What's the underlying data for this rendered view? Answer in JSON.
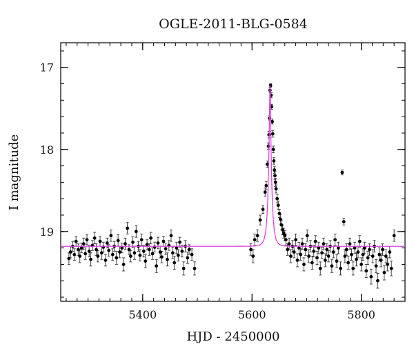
{
  "chart_data": {
    "type": "scatter",
    "title": "OGLE-2011-BLG-0584",
    "xlabel": "HJD - 2450000",
    "ylabel": "I magnitude",
    "xlim": [
      5250,
      5880
    ],
    "ylim": [
      19.85,
      16.7
    ],
    "y_inverted": true,
    "x_major_ticks": [
      5400,
      5600,
      5800
    ],
    "x_minor_step": 20,
    "y_major_ticks": [
      17,
      18,
      19
    ],
    "y_minor_step": 0.2,
    "grid": false,
    "colors": {
      "data": "#000000",
      "errorbar": "#333333",
      "model": "#e040e0"
    },
    "model": {
      "name": "model",
      "baseline": 19.18,
      "peak_mag": 17.22,
      "t0": 5633,
      "tE": 6.2
    },
    "series": [
      {
        "name": "data",
        "points": [
          [
            5265,
            19.33,
            0.07
          ],
          [
            5268,
            19.25,
            0.07
          ],
          [
            5272,
            19.18,
            0.06
          ],
          [
            5275,
            19.28,
            0.07
          ],
          [
            5278,
            19.12,
            0.06
          ],
          [
            5282,
            19.22,
            0.07
          ],
          [
            5285,
            19.3,
            0.08
          ],
          [
            5288,
            19.2,
            0.06
          ],
          [
            5292,
            19.15,
            0.07
          ],
          [
            5295,
            19.27,
            0.07
          ],
          [
            5298,
            19.1,
            0.06
          ],
          [
            5302,
            19.24,
            0.07
          ],
          [
            5305,
            19.34,
            0.08
          ],
          [
            5308,
            19.17,
            0.06
          ],
          [
            5312,
            19.08,
            0.07
          ],
          [
            5315,
            19.22,
            0.07
          ],
          [
            5318,
            19.3,
            0.07
          ],
          [
            5322,
            19.12,
            0.06
          ],
          [
            5325,
            19.26,
            0.08
          ],
          [
            5328,
            19.19,
            0.06
          ],
          [
            5332,
            19.35,
            0.07
          ],
          [
            5335,
            19.14,
            0.06
          ],
          [
            5338,
            19.23,
            0.07
          ],
          [
            5342,
            19.05,
            0.07
          ],
          [
            5345,
            19.28,
            0.07
          ],
          [
            5348,
            19.18,
            0.06
          ],
          [
            5352,
            19.32,
            0.08
          ],
          [
            5355,
            19.11,
            0.07
          ],
          [
            5358,
            19.25,
            0.07
          ],
          [
            5362,
            19.2,
            0.06
          ],
          [
            5365,
            19.4,
            0.08
          ],
          [
            5368,
            19.15,
            0.07
          ],
          [
            5372,
            18.96,
            0.07
          ],
          [
            5375,
            19.22,
            0.06
          ],
          [
            5378,
            19.3,
            0.07
          ],
          [
            5382,
            19.13,
            0.07
          ],
          [
            5385,
            19.26,
            0.08
          ],
          [
            5388,
            19.0,
            0.07
          ],
          [
            5392,
            19.18,
            0.06
          ],
          [
            5395,
            19.29,
            0.07
          ],
          [
            5398,
            19.1,
            0.07
          ],
          [
            5402,
            19.24,
            0.07
          ],
          [
            5405,
            19.36,
            0.08
          ],
          [
            5408,
            19.16,
            0.06
          ],
          [
            5412,
            19.22,
            0.07
          ],
          [
            5415,
            19.08,
            0.07
          ],
          [
            5418,
            19.27,
            0.07
          ],
          [
            5422,
            19.19,
            0.06
          ],
          [
            5425,
            19.42,
            0.08
          ],
          [
            5428,
            19.14,
            0.07
          ],
          [
            5432,
            19.25,
            0.07
          ],
          [
            5435,
            19.31,
            0.07
          ],
          [
            5438,
            19.12,
            0.06
          ],
          [
            5442,
            19.21,
            0.07
          ],
          [
            5445,
            19.34,
            0.08
          ],
          [
            5448,
            19.17,
            0.06
          ],
          [
            5452,
            19.05,
            0.07
          ],
          [
            5455,
            19.26,
            0.07
          ],
          [
            5458,
            19.38,
            0.08
          ],
          [
            5462,
            19.2,
            0.07
          ],
          [
            5465,
            19.29,
            0.07
          ],
          [
            5468,
            19.13,
            0.06
          ],
          [
            5472,
            19.24,
            0.07
          ],
          [
            5475,
            19.45,
            0.08
          ],
          [
            5478,
            19.18,
            0.07
          ],
          [
            5482,
            19.32,
            0.07
          ],
          [
            5485,
            19.22,
            0.06
          ],
          [
            5490,
            19.28,
            0.07
          ],
          [
            5495,
            19.45,
            0.08
          ],
          [
            5598,
            19.22,
            0.07
          ],
          [
            5602,
            19.3,
            0.08
          ],
          [
            5605,
            19.1,
            0.07
          ],
          [
            5610,
            19.05,
            0.07
          ],
          [
            5615,
            18.86,
            0.06
          ],
          [
            5620,
            18.73,
            0.05
          ],
          [
            5624,
            18.52,
            0.05
          ],
          [
            5626,
            18.44,
            0.05
          ],
          [
            5628,
            18.18,
            0.04
          ],
          [
            5630,
            17.96,
            0.04
          ],
          [
            5631,
            17.82,
            0.04
          ],
          [
            5632,
            17.62,
            0.03
          ],
          [
            5633,
            17.28,
            0.03
          ],
          [
            5634,
            17.22,
            0.02
          ],
          [
            5635,
            17.34,
            0.03
          ],
          [
            5636,
            17.48,
            0.03
          ],
          [
            5637,
            17.66,
            0.03
          ],
          [
            5638,
            17.81,
            0.04
          ],
          [
            5639,
            18.0,
            0.04
          ],
          [
            5640,
            18.14,
            0.04
          ],
          [
            5641,
            18.25,
            0.04
          ],
          [
            5642,
            18.32,
            0.05
          ],
          [
            5643,
            18.4,
            0.05
          ],
          [
            5644,
            18.48,
            0.05
          ],
          [
            5646,
            18.6,
            0.05
          ],
          [
            5648,
            18.68,
            0.05
          ],
          [
            5650,
            18.78,
            0.05
          ],
          [
            5652,
            18.85,
            0.06
          ],
          [
            5654,
            18.92,
            0.06
          ],
          [
            5656,
            18.98,
            0.06
          ],
          [
            5658,
            19.02,
            0.06
          ],
          [
            5660,
            19.05,
            0.06
          ],
          [
            5662,
            19.1,
            0.07
          ],
          [
            5665,
            19.22,
            0.07
          ],
          [
            5668,
            19.15,
            0.07
          ],
          [
            5671,
            19.3,
            0.08
          ],
          [
            5674,
            19.18,
            0.07
          ],
          [
            5677,
            19.25,
            0.07
          ],
          [
            5680,
            19.1,
            0.07
          ],
          [
            5683,
            19.35,
            0.08
          ],
          [
            5686,
            19.2,
            0.07
          ],
          [
            5689,
            19.28,
            0.07
          ],
          [
            5692,
            19.15,
            0.07
          ],
          [
            5695,
            19.4,
            0.08
          ],
          [
            5698,
            19.22,
            0.07
          ],
          [
            5701,
            19.05,
            0.07
          ],
          [
            5704,
            19.3,
            0.08
          ],
          [
            5707,
            19.18,
            0.07
          ],
          [
            5710,
            19.38,
            0.08
          ],
          [
            5713,
            19.24,
            0.07
          ],
          [
            5716,
            19.12,
            0.07
          ],
          [
            5719,
            19.32,
            0.08
          ],
          [
            5722,
            19.2,
            0.07
          ],
          [
            5725,
            19.45,
            0.08
          ],
          [
            5728,
            19.26,
            0.07
          ],
          [
            5731,
            19.15,
            0.07
          ],
          [
            5734,
            19.35,
            0.08
          ],
          [
            5737,
            19.22,
            0.07
          ],
          [
            5740,
            19.3,
            0.07
          ],
          [
            5743,
            19.18,
            0.07
          ],
          [
            5746,
            19.42,
            0.08
          ],
          [
            5749,
            19.25,
            0.07
          ],
          [
            5752,
            19.1,
            0.07
          ],
          [
            5755,
            19.36,
            0.08
          ],
          [
            5758,
            19.2,
            0.07
          ],
          [
            5762,
            19.45,
            0.08
          ],
          [
            5765,
            18.28,
            0.03
          ],
          [
            5768,
            18.88,
            0.04
          ],
          [
            5770,
            19.3,
            0.08
          ],
          [
            5773,
            19.22,
            0.07
          ],
          [
            5776,
            19.38,
            0.08
          ],
          [
            5779,
            19.15,
            0.07
          ],
          [
            5782,
            19.28,
            0.07
          ],
          [
            5785,
            19.45,
            0.08
          ],
          [
            5788,
            19.2,
            0.07
          ],
          [
            5791,
            19.34,
            0.08
          ],
          [
            5794,
            19.25,
            0.07
          ],
          [
            5797,
            19.12,
            0.07
          ],
          [
            5800,
            19.4,
            0.08
          ],
          [
            5803,
            19.28,
            0.07
          ],
          [
            5806,
            19.2,
            0.07
          ],
          [
            5809,
            19.48,
            0.08
          ],
          [
            5812,
            19.32,
            0.08
          ],
          [
            5815,
            19.22,
            0.07
          ],
          [
            5818,
            19.55,
            0.09
          ],
          [
            5821,
            19.3,
            0.08
          ],
          [
            5824,
            19.18,
            0.07
          ],
          [
            5827,
            19.42,
            0.08
          ],
          [
            5830,
            19.6,
            0.09
          ],
          [
            5833,
            19.28,
            0.08
          ],
          [
            5836,
            19.35,
            0.08
          ],
          [
            5839,
            19.22,
            0.07
          ],
          [
            5842,
            19.5,
            0.09
          ],
          [
            5845,
            19.3,
            0.08
          ],
          [
            5848,
            19.4,
            0.08
          ],
          [
            5852,
            19.25,
            0.07
          ],
          [
            5855,
            19.45,
            0.09
          ],
          [
            5860,
            19.05,
            0.07
          ]
        ]
      }
    ]
  }
}
